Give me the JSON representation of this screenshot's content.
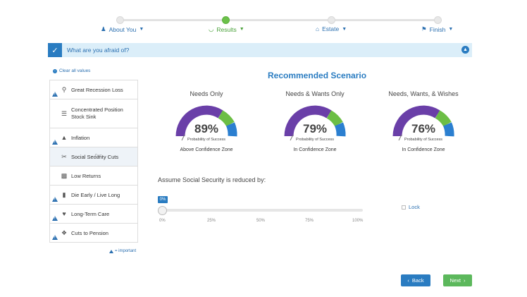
{
  "steps": [
    {
      "label": "About You",
      "icon": "person-icon",
      "state": "done"
    },
    {
      "label": "Results",
      "icon": "gauge-icon",
      "state": "active"
    },
    {
      "label": "Estate",
      "icon": "bank-icon",
      "state": "pending"
    },
    {
      "label": "Finish",
      "icon": "flag-icon",
      "state": "pending"
    }
  ],
  "section": {
    "title": "What are you afraid of?"
  },
  "clear_all": "Clear all values",
  "fears": [
    {
      "label": "Great Recession Loss",
      "important": true
    },
    {
      "label": "Concentrated Position Stock Sink",
      "important": false
    },
    {
      "label": "Inflation",
      "important": true
    },
    {
      "label": "Social Security Cuts",
      "important": false
    },
    {
      "label": "Low Returns",
      "important": false
    },
    {
      "label": "Die Early / Live Long",
      "important": true
    },
    {
      "label": "Long-Term Care",
      "important": true
    },
    {
      "label": "Cuts to Pension",
      "important": true
    }
  ],
  "legend_important": "= important",
  "scenario": {
    "title": "Recommended Scenario",
    "gauges": [
      {
        "title": "Needs Only",
        "value": "89%",
        "sub": "Probability of Success",
        "zone": "Above Confidence Zone"
      },
      {
        "title": "Needs & Wants Only",
        "value": "79%",
        "sub": "Probability of Success",
        "zone": "In Confidence Zone"
      },
      {
        "title": "Needs, Wants, & Wishes",
        "value": "76%",
        "sub": "Probability of Success",
        "zone": "In Confidence Zone"
      }
    ]
  },
  "slider": {
    "label": "Assume Social Security is reduced by:",
    "value": "0%",
    "fraction": 0,
    "ticks": [
      "0%",
      "25%",
      "50%",
      "75%",
      "100%"
    ]
  },
  "lock_label": "Lock",
  "buttons": {
    "back": "Back",
    "next": "Next"
  },
  "colors": {
    "accent": "#2a7cc1",
    "success": "#5cb85c",
    "gauge_purple": "#6a3fa8",
    "gauge_green": "#6cbe45",
    "gauge_blue": "#2b7fd0"
  }
}
